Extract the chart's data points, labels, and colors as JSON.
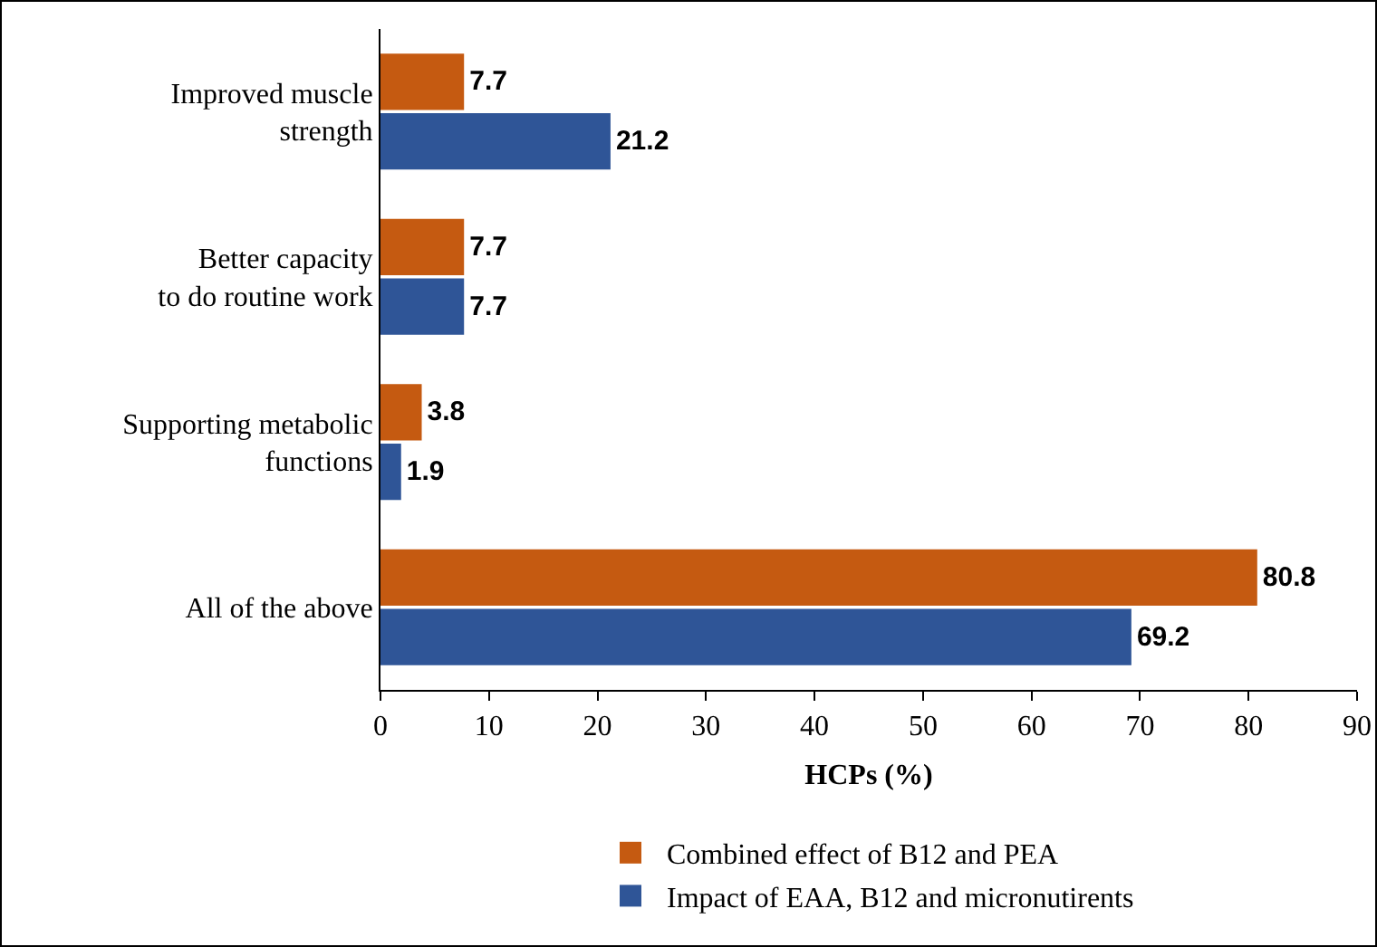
{
  "chart_data": {
    "type": "bar",
    "orientation": "horizontal",
    "xlabel": "HCPs (%)",
    "categories": [
      "Improved muscle\nstrength",
      "Better capacity\nto do routine work",
      "Supporting metabolic\nfunctions",
      "All of the above"
    ],
    "series": [
      {
        "name": "Combined effect of B12 and PEA",
        "color": "#c55a11",
        "values": [
          7.7,
          7.7,
          3.8,
          80.8
        ]
      },
      {
        "name": "Impact of EAA, B12 and micronutirents",
        "color": "#2f5597",
        "values": [
          21.2,
          7.7,
          1.9,
          69.2
        ]
      }
    ],
    "xlim": [
      0,
      90
    ],
    "xticks": [
      0,
      10,
      20,
      30,
      40,
      50,
      60,
      70,
      80,
      90
    ],
    "grid": false,
    "legend": "bottom",
    "data_labels": true
  }
}
